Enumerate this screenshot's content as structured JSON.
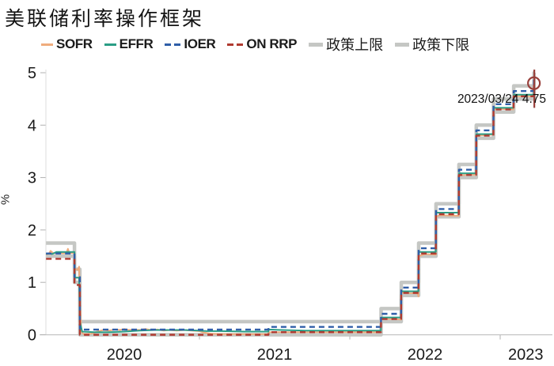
{
  "title": "美联储利率操作框架",
  "ylabel": "%",
  "annotation": {
    "text": "2023/03/24 4.75"
  },
  "legend": {
    "items": [
      {
        "id": "sofr",
        "label": "SOFR",
        "lang": "en",
        "style": "solid",
        "color": "#EFAC7D"
      },
      {
        "id": "effr",
        "label": "EFFR",
        "lang": "en",
        "style": "solid",
        "color": "#2A9D85"
      },
      {
        "id": "ioer",
        "label": "IOER",
        "lang": "en",
        "style": "dashed",
        "color": "#2F5EA8"
      },
      {
        "id": "on-rrp",
        "label": "ON RRP",
        "lang": "en",
        "style": "dashed",
        "color": "#B03A30"
      },
      {
        "id": "policy-upper",
        "label": "政策上限",
        "lang": "zh",
        "style": "thick",
        "color": "#C5C7C4"
      },
      {
        "id": "policy-lower",
        "label": "政策下限",
        "lang": "zh",
        "style": "thick",
        "color": "#C5C7C4"
      }
    ]
  },
  "chart_data": {
    "type": "line",
    "title": "美联储利率操作框架",
    "xlabel": "",
    "ylabel": "%",
    "x_axis": {
      "tick_years": [
        2021,
        2022,
        2023
      ],
      "labels": [
        {
          "text": "2020",
          "year": 2020.5
        },
        {
          "text": "2021",
          "year": 2021.5
        },
        {
          "text": "2022",
          "year": 2022.5
        },
        {
          "text": "2023",
          "year": 2023.17
        }
      ]
    },
    "y_axis": {
      "ticks": [
        0,
        1,
        2,
        3,
        4,
        5
      ],
      "range": [
        0,
        5.2
      ]
    },
    "grid": false,
    "legend_position": "top",
    "series": [
      {
        "id": "policy-upper",
        "name": "政策上限",
        "color": "#C5C7C4",
        "width": 4.5,
        "dash": "",
        "points": [
          [
            2019.98,
            1.75
          ],
          [
            2020.169,
            1.75
          ],
          [
            2020.169,
            1.25
          ],
          [
            2020.205,
            1.25
          ],
          [
            2020.205,
            0.25
          ],
          [
            2022.208,
            0.25
          ],
          [
            2022.208,
            0.5
          ],
          [
            2022.342,
            0.5
          ],
          [
            2022.342,
            1.0
          ],
          [
            2022.458,
            1.0
          ],
          [
            2022.458,
            1.75
          ],
          [
            2022.573,
            1.75
          ],
          [
            2022.573,
            2.5
          ],
          [
            2022.726,
            2.5
          ],
          [
            2022.726,
            3.25
          ],
          [
            2022.841,
            3.25
          ],
          [
            2022.841,
            4.0
          ],
          [
            2022.956,
            4.0
          ],
          [
            2022.956,
            4.5
          ],
          [
            2023.09,
            4.5
          ],
          [
            2023.09,
            4.75
          ],
          [
            2023.225,
            4.75
          ],
          [
            2023.225,
            5.0
          ],
          [
            2023.23,
            5.0
          ]
        ]
      },
      {
        "id": "policy-lower",
        "name": "政策下限",
        "color": "#C5C7C4",
        "width": 4.5,
        "dash": "",
        "points": [
          [
            2019.98,
            1.5
          ],
          [
            2020.169,
            1.5
          ],
          [
            2020.169,
            1.0
          ],
          [
            2020.205,
            1.0
          ],
          [
            2020.205,
            0.0
          ],
          [
            2022.208,
            0.0
          ],
          [
            2022.208,
            0.25
          ],
          [
            2022.342,
            0.25
          ],
          [
            2022.342,
            0.75
          ],
          [
            2022.458,
            0.75
          ],
          [
            2022.458,
            1.5
          ],
          [
            2022.573,
            1.5
          ],
          [
            2022.573,
            2.25
          ],
          [
            2022.726,
            2.25
          ],
          [
            2022.726,
            3.0
          ],
          [
            2022.841,
            3.0
          ],
          [
            2022.841,
            3.75
          ],
          [
            2022.956,
            3.75
          ],
          [
            2022.956,
            4.25
          ],
          [
            2023.09,
            4.25
          ],
          [
            2023.09,
            4.5
          ],
          [
            2023.225,
            4.5
          ],
          [
            2023.225,
            4.75
          ],
          [
            2023.23,
            4.75
          ]
        ]
      },
      {
        "id": "sofr",
        "name": "SOFR",
        "color": "#EFAC7D",
        "width": 2,
        "dash": "",
        "points": [
          [
            2019.98,
            1.53
          ],
          [
            2020.0,
            1.55
          ],
          [
            2020.01,
            1.6
          ],
          [
            2020.03,
            1.55
          ],
          [
            2020.06,
            1.57
          ],
          [
            2020.09,
            1.55
          ],
          [
            2020.115,
            1.56
          ],
          [
            2020.125,
            1.64
          ],
          [
            2020.135,
            1.56
          ],
          [
            2020.169,
            1.56
          ],
          [
            2020.172,
            1.26
          ],
          [
            2020.19,
            1.24
          ],
          [
            2020.2,
            1.3
          ],
          [
            2020.205,
            0.6
          ],
          [
            2020.215,
            0.06
          ],
          [
            2020.23,
            0.01
          ],
          [
            2020.28,
            0.02
          ],
          [
            2020.32,
            0.06
          ],
          [
            2020.36,
            0.09
          ],
          [
            2020.4,
            0.08
          ],
          [
            2020.44,
            0.1
          ],
          [
            2020.47,
            0.09
          ],
          [
            2020.5,
            0.11
          ],
          [
            2020.53,
            0.09
          ],
          [
            2020.56,
            0.1
          ],
          [
            2020.6,
            0.09
          ],
          [
            2020.64,
            0.11
          ],
          [
            2020.68,
            0.09
          ],
          [
            2020.72,
            0.1
          ],
          [
            2020.76,
            0.08
          ],
          [
            2020.8,
            0.09
          ],
          [
            2020.85,
            0.08
          ],
          [
            2020.9,
            0.09
          ],
          [
            2020.95,
            0.08
          ],
          [
            2021.0,
            0.07
          ],
          [
            2021.03,
            0.04
          ],
          [
            2021.08,
            0.02
          ],
          [
            2021.15,
            0.01
          ],
          [
            2021.35,
            0.01
          ],
          [
            2021.459,
            0.01
          ],
          [
            2021.46,
            0.05
          ],
          [
            2021.7,
            0.05
          ],
          [
            2022.0,
            0.05
          ],
          [
            2022.207,
            0.05
          ],
          [
            2022.208,
            0.3
          ],
          [
            2022.3,
            0.3
          ],
          [
            2022.341,
            0.29
          ],
          [
            2022.342,
            0.8
          ],
          [
            2022.45,
            0.79
          ],
          [
            2022.457,
            0.73
          ],
          [
            2022.458,
            1.5
          ],
          [
            2022.5,
            1.54
          ],
          [
            2022.572,
            1.53
          ],
          [
            2022.573,
            2.25
          ],
          [
            2022.6,
            2.28
          ],
          [
            2022.725,
            2.27
          ],
          [
            2022.726,
            3.04
          ],
          [
            2022.78,
            3.05
          ],
          [
            2022.84,
            3.05
          ],
          [
            2022.841,
            3.8
          ],
          [
            2022.9,
            3.81
          ],
          [
            2022.955,
            3.82
          ],
          [
            2022.956,
            4.3
          ],
          [
            2023.0,
            4.31
          ],
          [
            2023.089,
            4.3
          ],
          [
            2023.09,
            4.55
          ],
          [
            2023.2,
            4.55
          ],
          [
            2023.224,
            4.55
          ],
          [
            2023.225,
            4.8
          ],
          [
            2023.23,
            4.81
          ]
        ]
      },
      {
        "id": "effr",
        "name": "EFFR",
        "color": "#2A9D85",
        "width": 2,
        "dash": "",
        "points": [
          [
            2019.98,
            1.54
          ],
          [
            2020.0,
            1.55
          ],
          [
            2020.02,
            1.54
          ],
          [
            2020.05,
            1.58
          ],
          [
            2020.14,
            1.58
          ],
          [
            2020.169,
            1.58
          ],
          [
            2020.172,
            1.09
          ],
          [
            2020.2,
            1.09
          ],
          [
            2020.205,
            0.25
          ],
          [
            2020.22,
            0.06
          ],
          [
            2020.3,
            0.05
          ],
          [
            2020.4,
            0.05
          ],
          [
            2020.5,
            0.06
          ],
          [
            2020.6,
            0.08
          ],
          [
            2020.7,
            0.09
          ],
          [
            2020.9,
            0.09
          ],
          [
            2021.0,
            0.08
          ],
          [
            2021.05,
            0.07
          ],
          [
            2021.15,
            0.07
          ],
          [
            2021.3,
            0.06
          ],
          [
            2021.459,
            0.06
          ],
          [
            2021.46,
            0.1
          ],
          [
            2021.55,
            0.09
          ],
          [
            2021.7,
            0.08
          ],
          [
            2022.1,
            0.08
          ],
          [
            2022.207,
            0.08
          ],
          [
            2022.208,
            0.33
          ],
          [
            2022.341,
            0.33
          ],
          [
            2022.342,
            0.83
          ],
          [
            2022.457,
            0.83
          ],
          [
            2022.458,
            1.58
          ],
          [
            2022.572,
            1.58
          ],
          [
            2022.573,
            2.33
          ],
          [
            2022.725,
            2.33
          ],
          [
            2022.726,
            3.08
          ],
          [
            2022.84,
            3.08
          ],
          [
            2022.841,
            3.83
          ],
          [
            2022.955,
            3.83
          ],
          [
            2022.956,
            4.33
          ],
          [
            2023.089,
            4.33
          ],
          [
            2023.09,
            4.58
          ],
          [
            2023.224,
            4.58
          ],
          [
            2023.225,
            4.83
          ],
          [
            2023.23,
            4.83
          ]
        ]
      },
      {
        "id": "ioer",
        "name": "IOER",
        "color": "#2F5EA8",
        "width": 2.4,
        "dash": "7 5",
        "points": [
          [
            2019.98,
            1.55
          ],
          [
            2020.169,
            1.55
          ],
          [
            2020.169,
            1.1
          ],
          [
            2020.205,
            1.1
          ],
          [
            2020.205,
            0.1
          ],
          [
            2021.459,
            0.1
          ],
          [
            2021.46,
            0.15
          ],
          [
            2022.207,
            0.15
          ],
          [
            2022.208,
            0.4
          ],
          [
            2022.341,
            0.4
          ],
          [
            2022.342,
            0.9
          ],
          [
            2022.457,
            0.9
          ],
          [
            2022.458,
            1.65
          ],
          [
            2022.572,
            1.65
          ],
          [
            2022.573,
            2.4
          ],
          [
            2022.725,
            2.4
          ],
          [
            2022.726,
            3.15
          ],
          [
            2022.84,
            3.15
          ],
          [
            2022.841,
            3.9
          ],
          [
            2022.955,
            3.9
          ],
          [
            2022.956,
            4.4
          ],
          [
            2023.089,
            4.4
          ],
          [
            2023.09,
            4.65
          ],
          [
            2023.224,
            4.65
          ],
          [
            2023.225,
            4.9
          ],
          [
            2023.23,
            4.9
          ]
        ]
      },
      {
        "id": "on-rrp",
        "name": "ON RRP",
        "color": "#B03A30",
        "width": 2.4,
        "dash": "7 5",
        "points": [
          [
            2019.98,
            1.45
          ],
          [
            2020.169,
            1.45
          ],
          [
            2020.169,
            0.95
          ],
          [
            2020.205,
            0.95
          ],
          [
            2020.205,
            0.0
          ],
          [
            2021.459,
            0.0
          ],
          [
            2021.46,
            0.05
          ],
          [
            2022.207,
            0.05
          ],
          [
            2022.208,
            0.3
          ],
          [
            2022.341,
            0.3
          ],
          [
            2022.342,
            0.8
          ],
          [
            2022.457,
            0.8
          ],
          [
            2022.458,
            1.55
          ],
          [
            2022.572,
            1.55
          ],
          [
            2022.573,
            2.3
          ],
          [
            2022.725,
            2.3
          ],
          [
            2022.726,
            3.05
          ],
          [
            2022.84,
            3.05
          ],
          [
            2022.841,
            3.8
          ],
          [
            2022.955,
            3.8
          ],
          [
            2022.956,
            4.3
          ],
          [
            2023.089,
            4.3
          ],
          [
            2023.09,
            4.55
          ],
          [
            2023.224,
            4.55
          ],
          [
            2023.225,
            4.8
          ],
          [
            2023.23,
            4.8
          ]
        ]
      }
    ],
    "end_marker": {
      "date": "2023/03/24",
      "value": 4.75,
      "x_year": 2023.227,
      "circle_center_value": 4.8,
      "line_value_range": [
        4.33,
        5.06
      ],
      "color": "#99413C"
    }
  }
}
